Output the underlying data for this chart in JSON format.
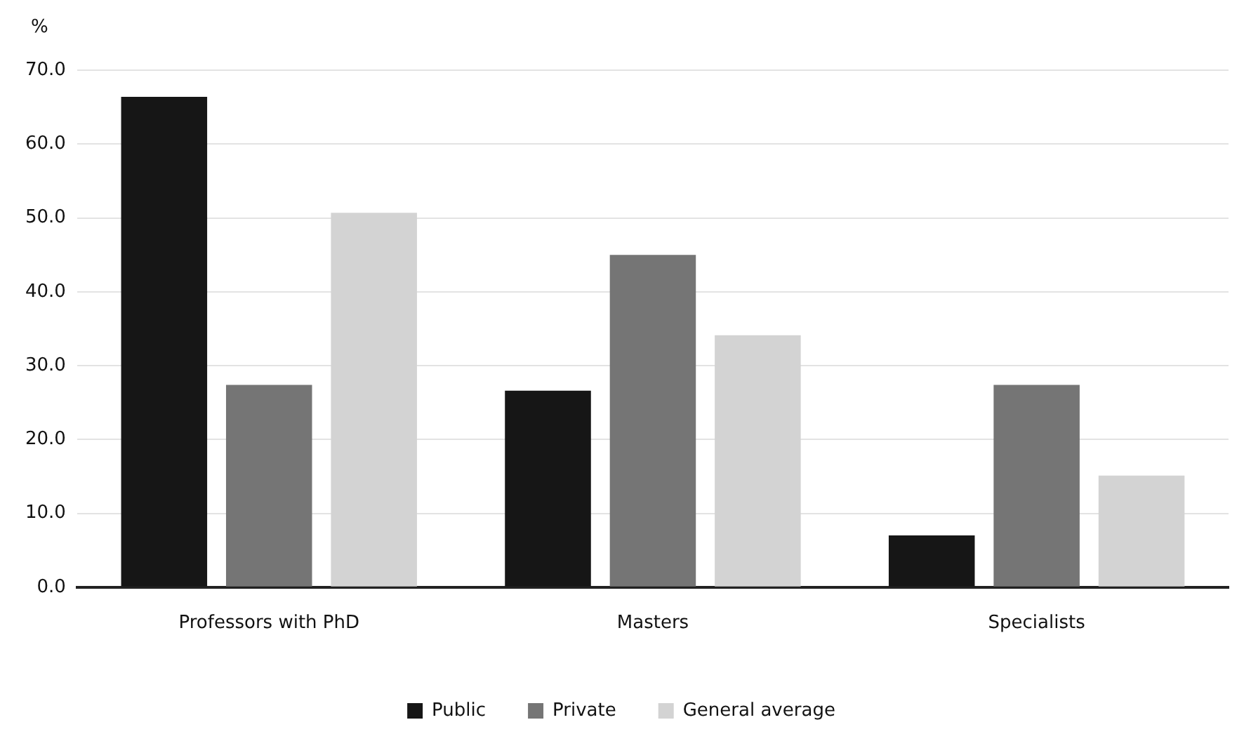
{
  "chart_data": {
    "type": "bar",
    "ylabel": "%",
    "categories": [
      "Professors with PhD",
      "Masters",
      "Specialists"
    ],
    "series": [
      {
        "name": "Public",
        "color": "#161616",
        "values": [
          66.4,
          26.6,
          7.0
        ]
      },
      {
        "name": "Private",
        "color": "#757575",
        "values": [
          27.4,
          45.0,
          27.4
        ]
      },
      {
        "name": "General average",
        "color": "#d3d3d3",
        "values": [
          50.7,
          34.1,
          15.1
        ]
      }
    ],
    "ylim": [
      0,
      70
    ],
    "yticks": [
      {
        "value": 0,
        "label": "0.0"
      },
      {
        "value": 10,
        "label": "10.0"
      },
      {
        "value": 20,
        "label": "20.0"
      },
      {
        "value": 30,
        "label": "30.0"
      },
      {
        "value": 40,
        "label": "40.0"
      },
      {
        "value": 50,
        "label": "50.0"
      },
      {
        "value": 60,
        "label": "60.0"
      },
      {
        "value": 70,
        "label": "70.0"
      }
    ],
    "grid": "y",
    "legend": "bottom"
  }
}
